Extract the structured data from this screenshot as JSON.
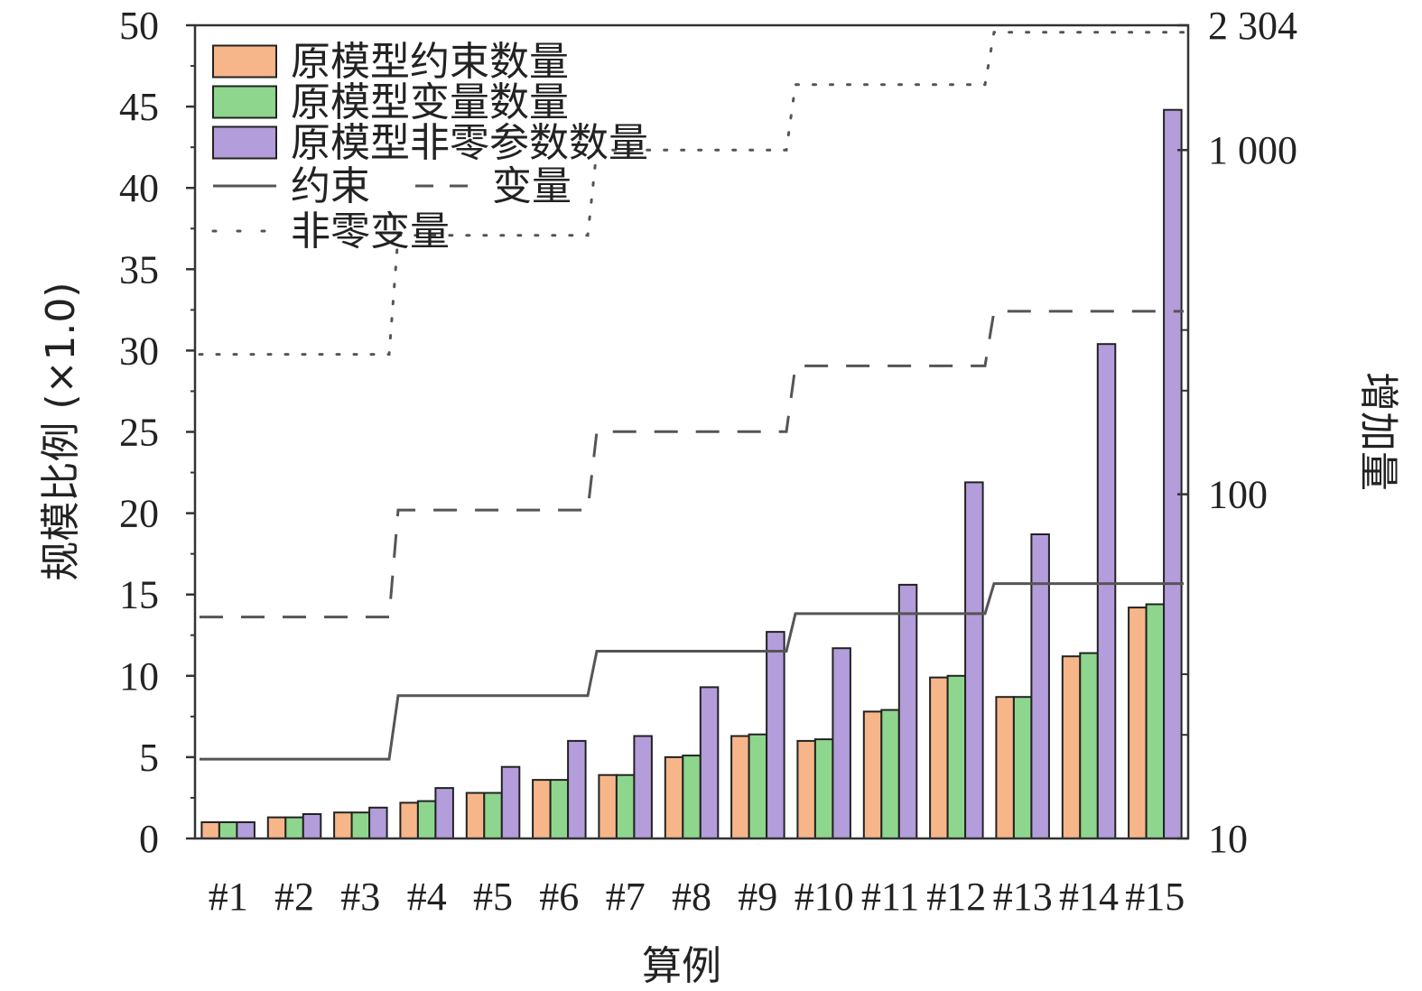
{
  "chart_data": {
    "type": "bar",
    "title": "",
    "xlabel": "算例",
    "ylabel": "规模比例 (×1.0)",
    "y2label": "增加量",
    "categories": [
      "#1",
      "#2",
      "#3",
      "#4",
      "#5",
      "#6",
      "#7",
      "#8",
      "#9",
      "#10",
      "#11",
      "#12",
      "#13",
      "#14",
      "#15"
    ],
    "ylim": [
      0,
      50
    ],
    "yticks": [
      "0",
      "5",
      "10",
      "15",
      "20",
      "25",
      "30",
      "35",
      "40",
      "45",
      "50"
    ],
    "y2_scale": "log",
    "y2lim": [
      10,
      2304
    ],
    "y2ticks": [
      "10",
      "100",
      "1 000",
      "2 304"
    ],
    "grid": false,
    "legend_position": "top-left",
    "bar_series": [
      {
        "name": "原模型约束数量",
        "color": "#f7b68a",
        "values": [
          1.0,
          1.3,
          1.6,
          2.2,
          2.8,
          3.6,
          3.9,
          5.0,
          6.3,
          6.0,
          7.8,
          9.9,
          8.7,
          11.2,
          14.2
        ]
      },
      {
        "name": "原模型变量数量",
        "color": "#8ed68e",
        "values": [
          1.0,
          1.3,
          1.6,
          2.3,
          2.8,
          3.6,
          3.9,
          5.1,
          6.4,
          6.1,
          7.9,
          10.0,
          8.7,
          11.4,
          14.4
        ]
      },
      {
        "name": "原模型非零参数数量",
        "color": "#b39ddb",
        "values": [
          1.0,
          1.5,
          1.9,
          3.1,
          4.4,
          6.0,
          6.3,
          9.3,
          12.7,
          11.7,
          15.6,
          21.9,
          18.7,
          30.4,
          44.8
        ]
      }
    ],
    "line_series": [
      {
        "name": "约束",
        "style": "solid",
        "values": [
          17,
          17,
          17,
          26,
          26,
          26,
          35,
          35,
          35,
          45,
          45,
          45,
          55,
          55,
          55
        ]
      },
      {
        "name": "变量",
        "style": "dashed",
        "values": [
          44,
          44,
          44,
          90,
          90,
          90,
          152,
          152,
          152,
          236,
          236,
          236,
          340,
          340,
          340
        ]
      },
      {
        "name": "非零变量",
        "style": "dotted",
        "values": [
          255,
          255,
          255,
          565,
          565,
          565,
          1000,
          1000,
          1000,
          1550,
          1550,
          1550,
          2200,
          2200,
          2200
        ]
      }
    ]
  }
}
